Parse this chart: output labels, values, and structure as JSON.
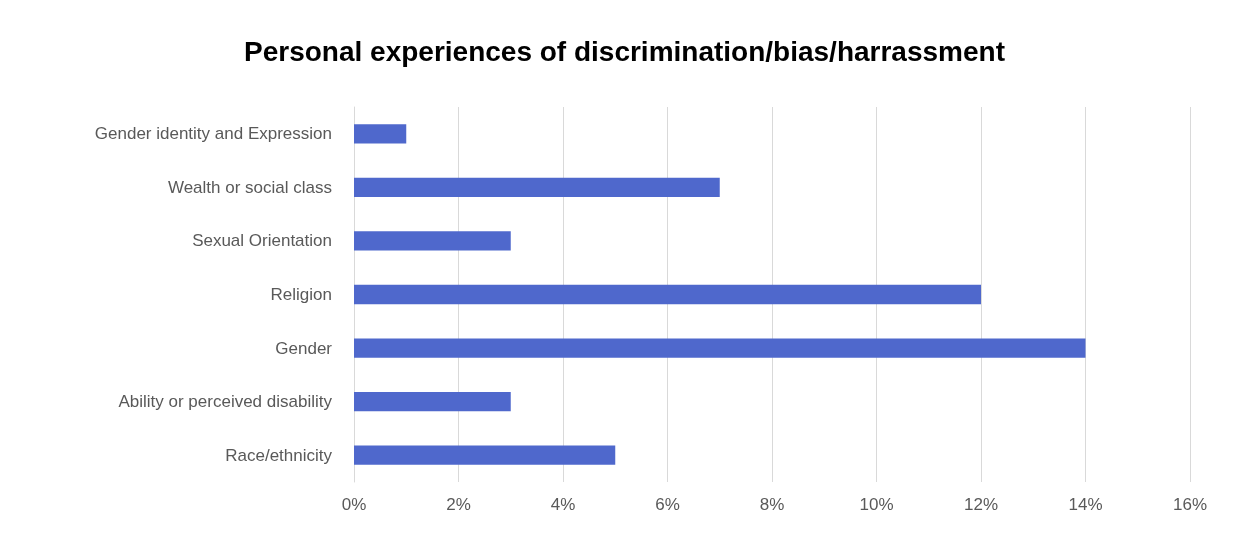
{
  "chart_data": {
    "type": "bar",
    "orientation": "horizontal",
    "title": "Personal experiences of discrimination/bias/harrassment",
    "categories": [
      "Gender identity and Expression",
      "Wealth or social class",
      "Sexual Orientation",
      "Religion",
      "Gender",
      "Ability or perceived disability",
      "Race/ethnicity"
    ],
    "values": [
      1,
      7,
      3,
      12,
      14,
      3,
      5
    ],
    "color": "#4f68cc",
    "xlim": [
      0,
      16
    ],
    "xticks": [
      {
        "value": 0,
        "label": "0%"
      },
      {
        "value": 2,
        "label": "2%"
      },
      {
        "value": 4,
        "label": "4%"
      },
      {
        "value": 6,
        "label": "6%"
      },
      {
        "value": 8,
        "label": "8%"
      },
      {
        "value": 10,
        "label": "10%"
      },
      {
        "value": 12,
        "label": "12%"
      },
      {
        "value": 14,
        "label": "14%"
      },
      {
        "value": 16,
        "label": "16%"
      }
    ],
    "grid": "x"
  }
}
